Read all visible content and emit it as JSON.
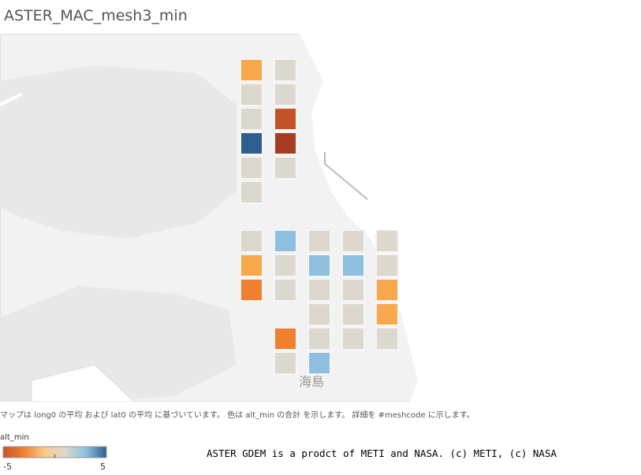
{
  "header": {
    "title": "ASTER_MAC_mesh3_min"
  },
  "map": {
    "groups": [
      {
        "columns": [
          [
            "#f9a94b",
            "#dcd8cd",
            "#dcd8cd",
            "#2e5f8e",
            "#dcd8cd",
            "#dcd8cd"
          ],
          [
            "#dcd8cd",
            "#dcd8cd",
            "#c4532a",
            "#a63d22",
            "#dcd8cd"
          ]
        ]
      },
      {
        "columns": [
          [
            "#dcd8cd",
            "#f9a94b",
            "#f08030"
          ],
          [
            "#8fbfe0",
            "#dcd8cd",
            "#dcd8cd",
            null,
            "#f08030",
            "#dcd8cd"
          ],
          [
            "#dcd8cd",
            "#8fbfe0",
            "#dcd8cd",
            "#dcd8cd",
            "#dcd8cd",
            "#8fbfe0"
          ],
          [
            "#dcd8cd",
            "#8fbfe0",
            "#dcd8cd",
            "#dcd8cd",
            "#dcd8cd"
          ],
          [
            "#dcd8cd",
            "#dcd8cd",
            "#f9a94b",
            "#f9a94b",
            "#dcd8cd"
          ]
        ]
      }
    ],
    "place_label": "海島"
  },
  "caption": "マップは long0 の平均 および lat0 の平均 に基づいています。 色は alt_min の合計 を示します。 詳細を #meshcode に示します。",
  "legend": {
    "title": "alt_min",
    "min": -5,
    "max": 5,
    "colors": [
      "#c4532a",
      "#f08030",
      "#f9c98a",
      "#dcd8cd",
      "#8fbfe0",
      "#2e5f8e"
    ]
  },
  "credit": "ASTER GDEM is a prodct of METI and NASA. (c) METI, (c) NASA"
}
